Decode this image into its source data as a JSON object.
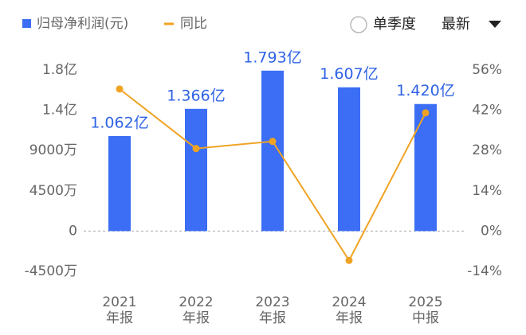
{
  "chart_data": {
    "type": "bar-line",
    "categories": [
      [
        "2021",
        "年报"
      ],
      [
        "2022",
        "年报"
      ],
      [
        "2023",
        "年报"
      ],
      [
        "2024",
        "年报"
      ],
      [
        "2025",
        "中报"
      ]
    ],
    "series": [
      {
        "name": "归母净利润(元)",
        "type": "bar",
        "color": "#3b6ef5",
        "values": [
          10620,
          13660,
          17930,
          16070,
          14200
        ],
        "value_labels": [
          "1.062亿",
          "1.366亿",
          "1.793亿",
          "1.607亿",
          "1.420亿"
        ]
      },
      {
        "name": "同比",
        "type": "line",
        "axis": "y2",
        "color": "#f0a323",
        "values": [
          49.4,
          28.7,
          31.2,
          -10.2,
          41.1
        ]
      }
    ],
    "ylim": [
      -4500,
      18000
    ],
    "yticks": [
      {
        "value": -4500,
        "label": "-4500万"
      },
      0,
      {
        "value": 4500,
        "label": "4500万"
      },
      {
        "value": 9000,
        "label": "9000万"
      },
      {
        "value": 13500,
        "label": "1.4亿"
      },
      {
        "value": 18000,
        "label": "1.8亿"
      }
    ],
    "y2lim": [
      -14,
      56
    ],
    "y2ticks": [
      {
        "value": -14,
        "label": "-14%"
      },
      {
        "value": 0,
        "label": "0%"
      },
      {
        "value": 14,
        "label": "14%"
      },
      {
        "value": 28,
        "label": "28%"
      },
      {
        "value": 42,
        "label": "42%"
      },
      {
        "value": 56,
        "label": "56%"
      }
    ],
    "controls": {
      "toggle": "单季度",
      "dropdown": "最新"
    }
  }
}
